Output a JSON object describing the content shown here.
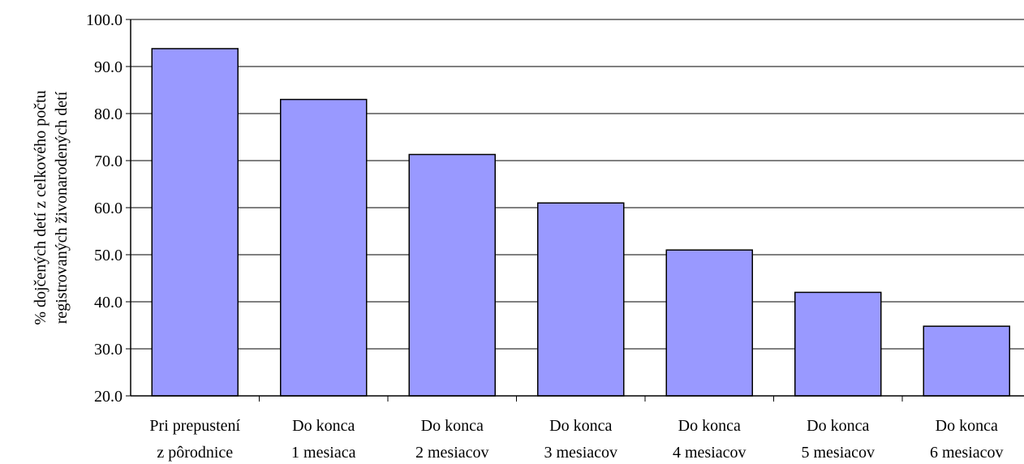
{
  "chart_data": {
    "type": "bar",
    "categories": [
      [
        "Pri prepustení",
        "z pôrodnice"
      ],
      [
        "Do konca",
        "1 mesiaca"
      ],
      [
        "Do konca",
        "2 mesiacov"
      ],
      [
        "Do konca",
        "3 mesiacov"
      ],
      [
        "Do konca",
        "4 mesiacov"
      ],
      [
        "Do konca",
        "5 mesiacov"
      ],
      [
        "Do konca",
        "6 mesiacov"
      ]
    ],
    "values": [
      93.8,
      83.0,
      71.3,
      61.0,
      51.0,
      42.0,
      34.8
    ],
    "ylabel": [
      "% dojčených detí z celkového počtu",
      "registrovaných živonarodených detí"
    ],
    "ylim": [
      20,
      100
    ],
    "yticks": [
      "20.0",
      "30.0",
      "40.0",
      "50.0",
      "60.0",
      "70.0",
      "80.0",
      "90.0",
      "100.0"
    ],
    "grid": true,
    "legend": "none",
    "colors": {
      "bar_fill": "#9999ff",
      "bar_stroke": "#000000",
      "grid": "#000000"
    }
  }
}
